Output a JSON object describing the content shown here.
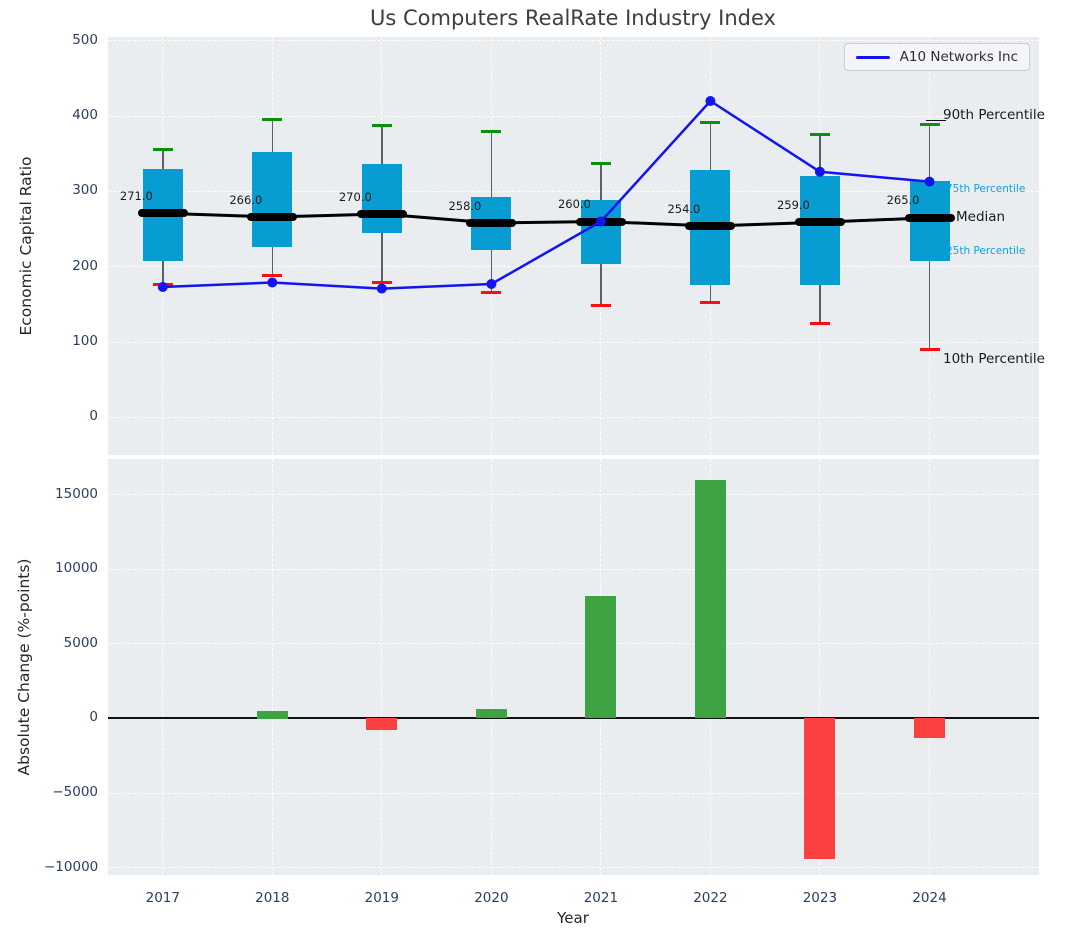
{
  "title": "Us Computers RealRate Industry Index",
  "legend": {
    "label": "A10 Networks Inc"
  },
  "axis_labels": {
    "y_top": "Economic Capital Ratio",
    "y_bottom": "Absolute Change (%-points)",
    "x": "Year"
  },
  "percentile_annotations": {
    "p90": "90th Percentile",
    "p75": "75th Percentile",
    "median": "Median",
    "p25": "25th Percentile",
    "p10": "10th Percentile"
  },
  "colors": {
    "axes_bg": "#e9edf0",
    "grid": "#ffffff",
    "tick_text": "#2a3f5f",
    "title_text": "#3a3f44",
    "text_dark": "#262626",
    "box_fill": "#089dd2",
    "whisker": "#5a616b",
    "cap_high": "#0c8f0c",
    "cap_low": "#fd0d0d",
    "median": "#000000",
    "company_line": "#1414f0",
    "bar_positive": "#3da343",
    "bar_negative": "#fb4040",
    "percentile_label_blue": "#11a0dc"
  },
  "chart_data": [
    {
      "type": "box",
      "panel": "top",
      "title": "Us Computers RealRate Industry Index",
      "ylabel": "Economic Capital Ratio",
      "categories": [
        "2017",
        "2018",
        "2019",
        "2020",
        "2021",
        "2022",
        "2023",
        "2024"
      ],
      "ylim": [
        -50,
        505
      ],
      "yticks": [
        0,
        100,
        200,
        300,
        400,
        500
      ],
      "grid": true,
      "legend_position": "upper right",
      "series": [
        {
          "name": "90th Percentile",
          "values": [
            356,
            396,
            388,
            380,
            337,
            392,
            376,
            389
          ]
        },
        {
          "name": "75th Percentile",
          "values": [
            330,
            352,
            337,
            293,
            288,
            329,
            320,
            314
          ]
        },
        {
          "name": "Median",
          "values": [
            271,
            266,
            270,
            258,
            260,
            254,
            259,
            265
          ]
        },
        {
          "name": "25th Percentile",
          "values": [
            208,
            226,
            245,
            222,
            203,
            176,
            175,
            208
          ]
        },
        {
          "name": "10th Percentile",
          "values": [
            176,
            188,
            179,
            166,
            149,
            153,
            125,
            90
          ]
        },
        {
          "name": "A10 Networks Inc",
          "values": [
            173,
            179,
            171,
            177,
            260,
            420,
            326,
            313
          ]
        }
      ],
      "median_labels": [
        "271.0",
        "266.0",
        "270.0",
        "258.0",
        "260.0",
        "254.0",
        "259.0",
        "265.0"
      ]
    },
    {
      "type": "bar",
      "panel": "bottom",
      "ylabel": "Absolute Change (%-points)",
      "xlabel": "Year",
      "categories": [
        "2017",
        "2018",
        "2019",
        "2020",
        "2021",
        "2022",
        "2023",
        "2024"
      ],
      "values": [
        null,
        500,
        -750,
        640,
        8200,
        16000,
        -9400,
        -1300
      ],
      "ylim": [
        -10500,
        17400
      ],
      "yticks": [
        15000,
        10000,
        5000,
        0,
        -5000,
        -10000
      ],
      "grid": true
    }
  ]
}
